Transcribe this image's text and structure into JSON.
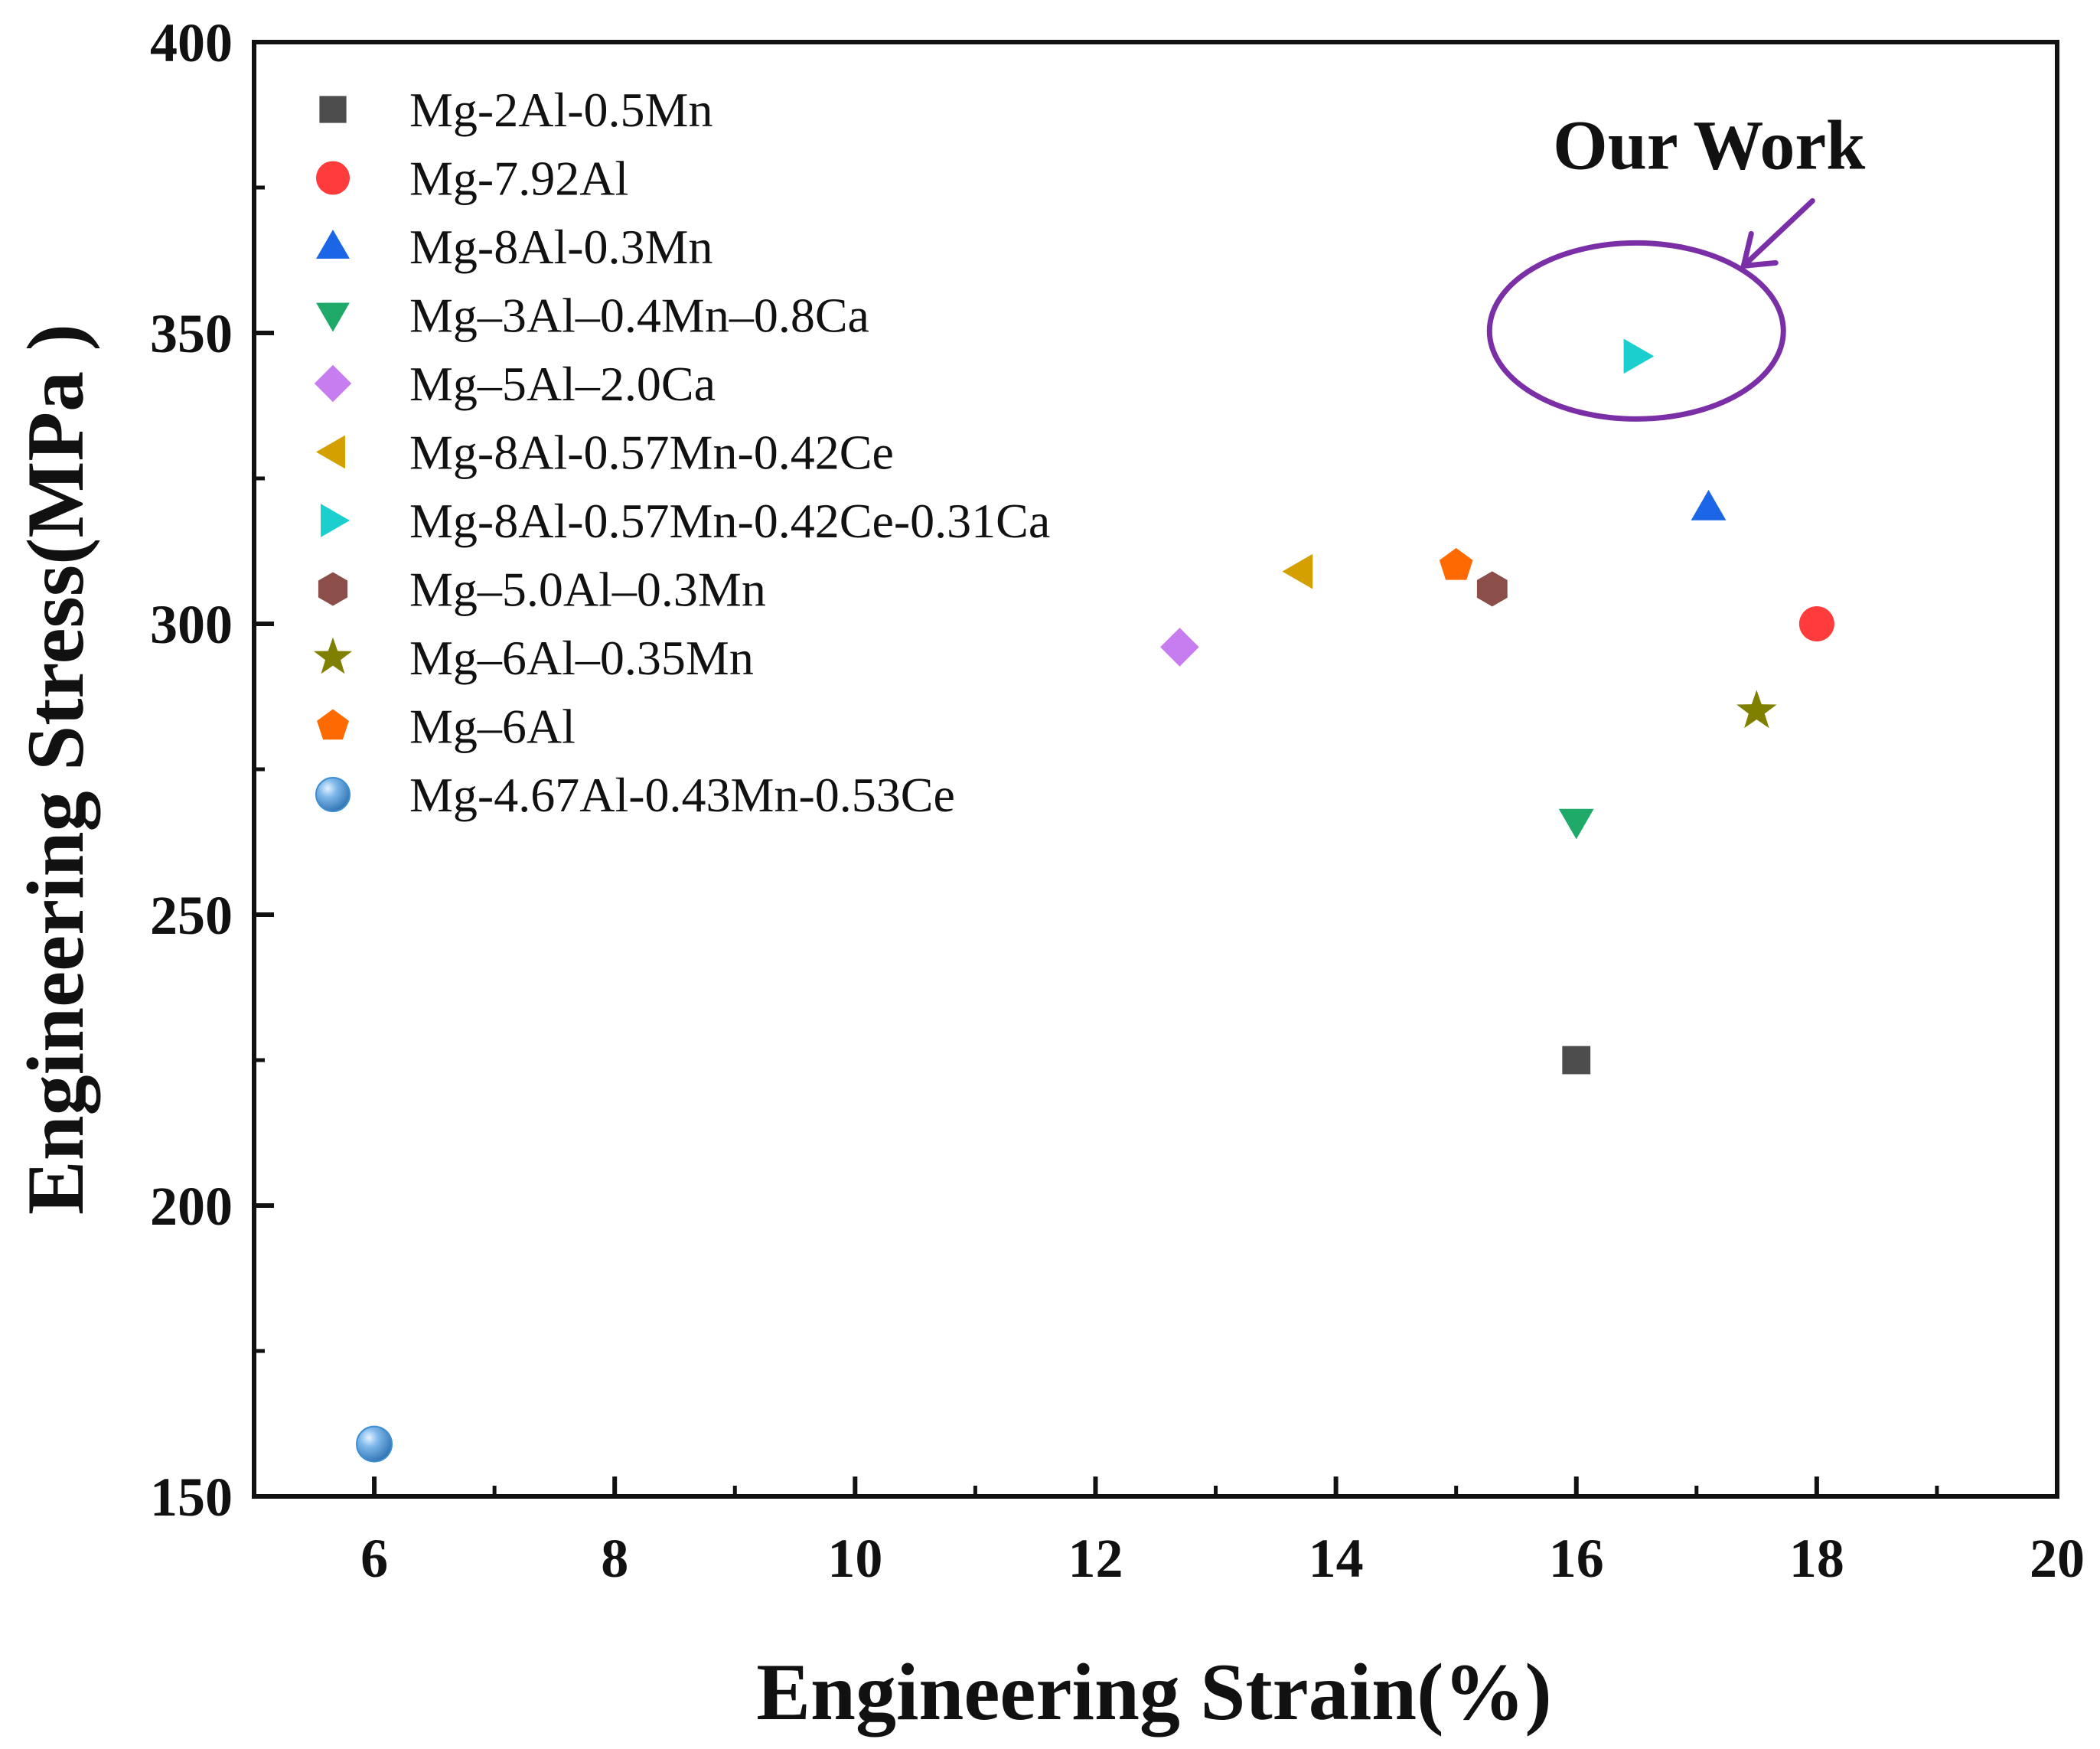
{
  "chart_data": {
    "type": "scatter",
    "title": "",
    "xlabel": "Engineering Strain(%)",
    "ylabel": "Engineering Stress(MPa )",
    "xlim": [
      5,
      20
    ],
    "ylim": [
      150,
      400
    ],
    "x_ticks": [
      6,
      8,
      10,
      12,
      14,
      16,
      18,
      20
    ],
    "y_ticks": [
      150,
      200,
      250,
      300,
      350,
      400
    ],
    "grid": false,
    "legend_position": "top-left",
    "series": [
      {
        "name": "Mg-2Al-0.5Mn",
        "marker": "square",
        "color": "#4d4d4d",
        "x": [
          16.0
        ],
        "y": [
          225
        ]
      },
      {
        "name": "Mg-7.92Al",
        "marker": "circle",
        "color": "#ff3b3b",
        "x": [
          18.0
        ],
        "y": [
          300
        ]
      },
      {
        "name": "Mg-8Al-0.3Mn",
        "marker": "triangle-up",
        "color": "#1a66e6",
        "x": [
          17.1
        ],
        "y": [
          320
        ]
      },
      {
        "name": "Mg–3Al–0.4Mn–0.8Ca",
        "marker": "triangle-down",
        "color": "#1faa6a",
        "x": [
          16.0
        ],
        "y": [
          266
        ]
      },
      {
        "name": "Mg–5Al–2.0Ca",
        "marker": "diamond",
        "color": "#c77cf0",
        "x": [
          12.7
        ],
        "y": [
          296
        ]
      },
      {
        "name": "Mg-8Al-0.57Mn-0.42Ce",
        "marker": "triangle-left",
        "color": "#d4a000",
        "x": [
          13.7
        ],
        "y": [
          309
        ]
      },
      {
        "name": "Mg-8Al-0.57Mn-0.42Ce-0.31Ca",
        "marker": "triangle-right",
        "color": "#1ccfcf",
        "x": [
          16.5
        ],
        "y": [
          346
        ]
      },
      {
        "name": "Mg–5.0Al–0.3Mn",
        "marker": "hexagon",
        "color": "#8c4e48",
        "x": [
          15.3
        ],
        "y": [
          306
        ]
      },
      {
        "name": "Mg–6Al–0.35Mn",
        "marker": "star",
        "color": "#808000",
        "x": [
          17.5
        ],
        "y": [
          285
        ]
      },
      {
        "name": "Mg–6Al",
        "marker": "pentagon",
        "color": "#ff6a00",
        "x": [
          15.0
        ],
        "y": [
          310
        ]
      },
      {
        "name": "Mg-4.67Al-0.43Mn-0.53Ce",
        "marker": "sphere",
        "color": "#3d8fd1",
        "x": [
          6.0
        ],
        "y": [
          159
        ]
      }
    ],
    "annotations": [
      {
        "text": "Our Work",
        "color": "#7b2fa6",
        "target_x": 16.5,
        "target_y": 346
      }
    ]
  }
}
